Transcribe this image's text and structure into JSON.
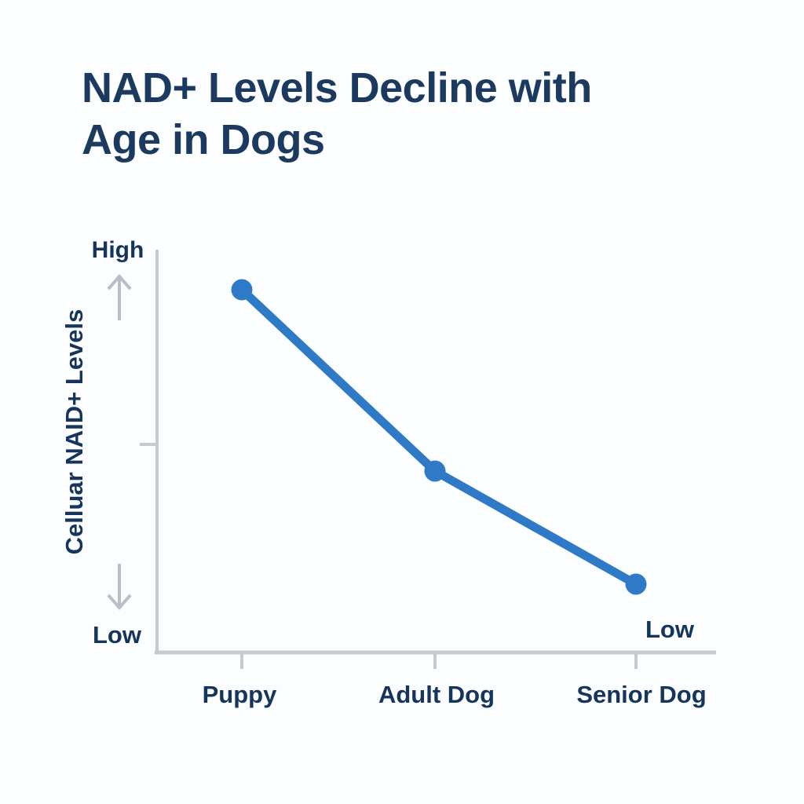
{
  "title": "NAD+ Levels Decline with Age in Dogs",
  "colors": {
    "title_text": "#1c3a60",
    "label_text": "#16355c",
    "axis": "#c6c9ce",
    "arrow": "#b9bec6",
    "line": "#2e7ac6",
    "background": "#fcfdfe"
  },
  "y_axis": {
    "label": "Celluar NAID+ Levels",
    "top_label": "High",
    "bottom_label": "Low"
  },
  "x_axis": {
    "categories": [
      "Puppy",
      "Adult Dog",
      "Senior Dog"
    ]
  },
  "annotations": {
    "last_point_label": "Low"
  },
  "chart_data": {
    "type": "line",
    "title": "NAD+ Levels Decline with Age in Dogs",
    "categories": [
      "Puppy",
      "Adult Dog",
      "Senior Dog"
    ],
    "series": [
      {
        "name": "Celluar NAID+ Levels",
        "values": [
          0.9,
          0.45,
          0.17
        ]
      }
    ],
    "xlabel": "",
    "ylabel": "Celluar NAID+ Levels",
    "ylim": [
      0,
      1
    ],
    "y_tick_labels_qualitative": {
      "top": "High",
      "bottom": "Low"
    },
    "grid": false,
    "legend": false,
    "marker": "circle",
    "line_color": "#2e7ac6",
    "point_annotations": [
      {
        "category": "Senior Dog",
        "text": "Low"
      }
    ]
  }
}
